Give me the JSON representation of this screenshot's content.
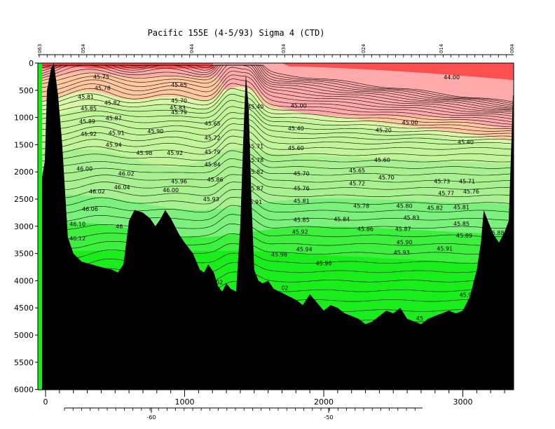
{
  "chart_data": {
    "type": "contour-section",
    "title": "Pacific 155E (4-5/93) Sigma 4 (CTD)",
    "x_label": "",
    "y_label": "",
    "xlim": [
      -25,
      3400
    ],
    "ylim": [
      0,
      6000
    ],
    "y_ticks": [
      0,
      500,
      1000,
      1500,
      2000,
      2500,
      3000,
      3500,
      4000,
      4500,
      5000,
      5500,
      6000
    ],
    "x_ticks": [
      0,
      1000,
      2000,
      3000
    ],
    "bottom_axis_ticks": [
      -60,
      -50
    ],
    "top_station_labels": [
      "063",
      "054",
      "044",
      "034",
      "024",
      "014",
      "004"
    ],
    "contour_labels": [
      {
        "text": "45.75",
        "x": 400,
        "y": 250
      },
      {
        "text": "45.78",
        "x": 410,
        "y": 460
      },
      {
        "text": "45.81",
        "x": 290,
        "y": 620
      },
      {
        "text": "45.82",
        "x": 480,
        "y": 730
      },
      {
        "text": "45.85",
        "x": 310,
        "y": 830
      },
      {
        "text": "45.87",
        "x": 490,
        "y": 1010
      },
      {
        "text": "45.89",
        "x": 300,
        "y": 1070
      },
      {
        "text": "45.91",
        "x": 510,
        "y": 1280
      },
      {
        "text": "45.92",
        "x": 310,
        "y": 1300
      },
      {
        "text": "45.94",
        "x": 490,
        "y": 1500
      },
      {
        "text": "45.98",
        "x": 710,
        "y": 1650
      },
      {
        "text": "46.00",
        "x": 280,
        "y": 1940
      },
      {
        "text": "46.02",
        "x": 580,
        "y": 2030
      },
      {
        "text": "46.04",
        "x": 550,
        "y": 2280
      },
      {
        "text": "46.02",
        "x": 370,
        "y": 2360
      },
      {
        "text": "46.06",
        "x": 320,
        "y": 2680
      },
      {
        "text": "46.10",
        "x": 230,
        "y": 2960
      },
      {
        "text": "46.12",
        "x": 230,
        "y": 3220
      },
      {
        "text": "45.65",
        "x": 960,
        "y": 400
      },
      {
        "text": "45.70",
        "x": 960,
        "y": 690
      },
      {
        "text": "45.83",
        "x": 950,
        "y": 820
      },
      {
        "text": "45.79",
        "x": 960,
        "y": 900
      },
      {
        "text": "45.90",
        "x": 790,
        "y": 1250
      },
      {
        "text": "45.92",
        "x": 930,
        "y": 1650
      },
      {
        "text": "46.00",
        "x": 900,
        "y": 2330
      },
      {
        "text": "45.96",
        "x": 960,
        "y": 2170
      },
      {
        "text": "45.65",
        "x": 1200,
        "y": 1110
      },
      {
        "text": "45.72",
        "x": 1200,
        "y": 1370
      },
      {
        "text": "45.79",
        "x": 1200,
        "y": 1630
      },
      {
        "text": "45.84",
        "x": 1200,
        "y": 1860
      },
      {
        "text": "45.86",
        "x": 1220,
        "y": 2140
      },
      {
        "text": "45.93",
        "x": 1190,
        "y": 2500
      },
      {
        "text": "45.40",
        "x": 1510,
        "y": 800
      },
      {
        "text": "45.71",
        "x": 1510,
        "y": 1530
      },
      {
        "text": "45.78",
        "x": 1510,
        "y": 1780
      },
      {
        "text": "45.82",
        "x": 1510,
        "y": 2000
      },
      {
        "text": "45.87",
        "x": 1510,
        "y": 2300
      },
      {
        "text": "45.91",
        "x": 1500,
        "y": 2550
      },
      {
        "text": "45.00",
        "x": 1820,
        "y": 780
      },
      {
        "text": "45.40",
        "x": 1800,
        "y": 1200
      },
      {
        "text": "45.60",
        "x": 1800,
        "y": 1560
      },
      {
        "text": "45.70",
        "x": 1840,
        "y": 2030
      },
      {
        "text": "45.76",
        "x": 1840,
        "y": 2300
      },
      {
        "text": "45.81",
        "x": 1840,
        "y": 2530
      },
      {
        "text": "45.85",
        "x": 1840,
        "y": 2880
      },
      {
        "text": "45.92",
        "x": 1830,
        "y": 3100
      },
      {
        "text": "45.94",
        "x": 1860,
        "y": 3420
      },
      {
        "text": "45.98",
        "x": 1680,
        "y": 3520
      },
      {
        "text": "45.96",
        "x": 2000,
        "y": 3680
      },
      {
        "text": "45.20",
        "x": 2430,
        "y": 1230
      },
      {
        "text": "45.60",
        "x": 2420,
        "y": 1780
      },
      {
        "text": "45.65",
        "x": 2240,
        "y": 1970
      },
      {
        "text": "45.70",
        "x": 2450,
        "y": 2100
      },
      {
        "text": "45.72",
        "x": 2240,
        "y": 2210
      },
      {
        "text": "45.78",
        "x": 2270,
        "y": 2620
      },
      {
        "text": "45.84",
        "x": 2130,
        "y": 2870
      },
      {
        "text": "45.86",
        "x": 2300,
        "y": 3050
      },
      {
        "text": "45.80",
        "x": 2580,
        "y": 2620
      },
      {
        "text": "45.83",
        "x": 2630,
        "y": 2840
      },
      {
        "text": "45.87",
        "x": 2570,
        "y": 3050
      },
      {
        "text": "45.90",
        "x": 2580,
        "y": 3290
      },
      {
        "text": "45.93",
        "x": 2560,
        "y": 3480
      },
      {
        "text": "45.00",
        "x": 2620,
        "y": 1090
      },
      {
        "text": "44.00",
        "x": 2920,
        "y": 260
      },
      {
        "text": "45.40",
        "x": 3020,
        "y": 1450
      },
      {
        "text": "45.73",
        "x": 2850,
        "y": 2170
      },
      {
        "text": "45.71",
        "x": 3030,
        "y": 2170
      },
      {
        "text": "45.77",
        "x": 2880,
        "y": 2390
      },
      {
        "text": "45.76",
        "x": 3060,
        "y": 2360
      },
      {
        "text": "45.82",
        "x": 2800,
        "y": 2660
      },
      {
        "text": "45.81",
        "x": 2990,
        "y": 2650
      },
      {
        "text": "45.85",
        "x": 2990,
        "y": 2950
      },
      {
        "text": "45.89",
        "x": 3010,
        "y": 3170
      },
      {
        "text": "45.91",
        "x": 2870,
        "y": 3410
      },
      {
        "text": "45.88",
        "x": 3240,
        "y": 3120
      },
      {
        "text": "45.9",
        "x": 3020,
        "y": 4260
      },
      {
        "text": "45",
        "x": 2690,
        "y": 4690
      },
      {
        "text": "02",
        "x": 1250,
        "y": 4030
      },
      {
        "text": "02",
        "x": 1720,
        "y": 4130
      },
      {
        "text": "46",
        "x": 530,
        "y": 3000
      }
    ],
    "fill_colors": [
      "#ff4d4d",
      "#ffaaaa",
      "#ffc8a0",
      "#d8f8a8",
      "#c2f49a",
      "#a8f090",
      "#7cf07c",
      "#3ef03e",
      "#1aee1a"
    ]
  }
}
